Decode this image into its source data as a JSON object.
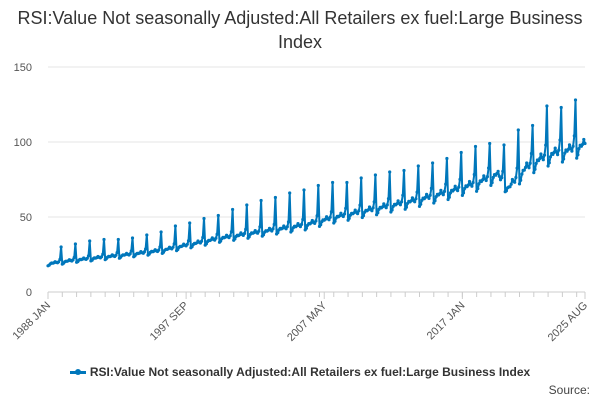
{
  "chart_data": {
    "type": "line",
    "title": "RSI:Value Not seasonally Adjusted:All Retailers ex fuel:Large Business Index",
    "xlabel": "",
    "ylabel": "",
    "ylim": [
      0,
      150
    ],
    "y_ticks": [
      0,
      50,
      100,
      150
    ],
    "x_tick_labels": [
      "1988 JAN",
      "1997 SEP",
      "2007 MAY",
      "2017 JAN",
      "2025 AUG"
    ],
    "x_range": [
      "1988-01",
      "2025-08"
    ],
    "grid": "horizontal",
    "legend_position": "bottom",
    "line_color": "#0077bb",
    "series": [
      {
        "name": "RSI:Value Not seasonally Adjusted:All Retailers ex fuel:Large Business Index",
        "trend": [
          {
            "date": "1988-01",
            "value": 19
          },
          {
            "date": "1990-01",
            "value": 21.5
          },
          {
            "date": "1992-01",
            "value": 23.5
          },
          {
            "date": "1994-01",
            "value": 25.5
          },
          {
            "date": "1996-01",
            "value": 28
          },
          {
            "date": "1998-01",
            "value": 32
          },
          {
            "date": "2000-01",
            "value": 36
          },
          {
            "date": "2002-01",
            "value": 39
          },
          {
            "date": "2004-01",
            "value": 42
          },
          {
            "date": "2006-01",
            "value": 45
          },
          {
            "date": "2008-01",
            "value": 50
          },
          {
            "date": "2010-01",
            "value": 54
          },
          {
            "date": "2012-01",
            "value": 58
          },
          {
            "date": "2014-01",
            "value": 62
          },
          {
            "date": "2016-01",
            "value": 67
          },
          {
            "date": "2018-01",
            "value": 73
          },
          {
            "date": "2019-06",
            "value": 79
          },
          {
            "date": "2020-04",
            "value": 70
          },
          {
            "date": "2021-06",
            "value": 83
          },
          {
            "date": "2022-06",
            "value": 89
          },
          {
            "date": "2023-06",
            "value": 93
          },
          {
            "date": "2024-06",
            "value": 95
          },
          {
            "date": "2025-08",
            "value": 99
          }
        ],
        "december_peaks": [
          {
            "year": 1988,
            "value": 30
          },
          {
            "year": 1989,
            "value": 32
          },
          {
            "year": 1990,
            "value": 34
          },
          {
            "year": 1991,
            "value": 35
          },
          {
            "year": 1992,
            "value": 35
          },
          {
            "year": 1993,
            "value": 36
          },
          {
            "year": 1994,
            "value": 38
          },
          {
            "year": 1995,
            "value": 40
          },
          {
            "year": 1996,
            "value": 44
          },
          {
            "year": 1997,
            "value": 46
          },
          {
            "year": 1998,
            "value": 49
          },
          {
            "year": 1999,
            "value": 51
          },
          {
            "year": 2000,
            "value": 55
          },
          {
            "year": 2001,
            "value": 58
          },
          {
            "year": 2002,
            "value": 61
          },
          {
            "year": 2003,
            "value": 63
          },
          {
            "year": 2004,
            "value": 66
          },
          {
            "year": 2005,
            "value": 68
          },
          {
            "year": 2006,
            "value": 71
          },
          {
            "year": 2007,
            "value": 73
          },
          {
            "year": 2008,
            "value": 73
          },
          {
            "year": 2009,
            "value": 76
          },
          {
            "year": 2010,
            "value": 78
          },
          {
            "year": 2011,
            "value": 80
          },
          {
            "year": 2012,
            "value": 81
          },
          {
            "year": 2013,
            "value": 84
          },
          {
            "year": 2014,
            "value": 86
          },
          {
            "year": 2015,
            "value": 89
          },
          {
            "year": 2016,
            "value": 93
          },
          {
            "year": 2017,
            "value": 97
          },
          {
            "year": 2018,
            "value": 99
          },
          {
            "year": 2019,
            "value": 98
          },
          {
            "year": 2020,
            "value": 108
          },
          {
            "year": 2021,
            "value": 111
          },
          {
            "year": 2022,
            "value": 124
          },
          {
            "year": 2023,
            "value": 123
          },
          {
            "year": 2024,
            "value": 128
          }
        ]
      }
    ]
  },
  "source_label": "Source:"
}
